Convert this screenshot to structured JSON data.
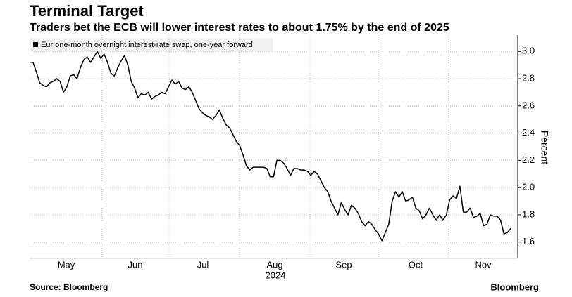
{
  "chart_data": {
    "type": "line",
    "title": "Terminal Target",
    "subtitle": "Traders bet the ECB will lower interest rates to about 1.75% by the end of 2025",
    "y_label": "Percent",
    "xtick_labels": [
      "May",
      "Jun",
      "Jul",
      "Aug",
      "Sep",
      "Oct",
      "Nov"
    ],
    "x_year_label": "2024",
    "source": "Source: Bloomberg",
    "logo": "Bloomberg",
    "ylim": [
      1.48,
      3.12
    ],
    "yticks": [
      1.6,
      1.8,
      {
        "value": 2.0,
        "label": "2.0"
      },
      2.2,
      2.4,
      2.6,
      2.8,
      {
        "value": 3.0,
        "label": "3.0"
      }
    ],
    "grid": true,
    "series": [
      {
        "name": "Eur one-month overnight interest-rate swap, one-year forward",
        "color": "#000000",
        "values": [
          2.92,
          2.92,
          2.85,
          2.77,
          2.75,
          2.74,
          2.77,
          2.78,
          2.8,
          2.78,
          2.7,
          2.74,
          2.82,
          2.83,
          2.8,
          2.88,
          2.94,
          2.96,
          2.92,
          2.96,
          3.0,
          2.95,
          2.98,
          2.92,
          2.84,
          2.82,
          2.88,
          2.93,
          2.97,
          2.9,
          2.78,
          2.73,
          2.66,
          2.69,
          2.68,
          2.7,
          2.65,
          2.67,
          2.68,
          2.7,
          2.69,
          2.74,
          2.79,
          2.76,
          2.78,
          2.73,
          2.72,
          2.74,
          2.7,
          2.64,
          2.58,
          2.55,
          2.53,
          2.52,
          2.5,
          2.53,
          2.57,
          2.51,
          2.46,
          2.44,
          2.39,
          2.34,
          2.31,
          2.24,
          2.16,
          2.13,
          2.15,
          2.15,
          2.15,
          2.15,
          2.14,
          2.08,
          2.08,
          2.2,
          2.2,
          2.18,
          2.14,
          2.09,
          2.14,
          2.14,
          2.13,
          2.13,
          2.12,
          2.09,
          2.12,
          2.1,
          2.05,
          2.0,
          1.97,
          1.9,
          1.85,
          1.8,
          1.89,
          1.84,
          1.8,
          1.87,
          1.85,
          1.81,
          1.75,
          1.72,
          1.75,
          1.73,
          1.69,
          1.66,
          1.61,
          1.67,
          1.73,
          1.9,
          1.97,
          1.93,
          1.97,
          1.9,
          1.91,
          1.93,
          1.85,
          1.83,
          1.77,
          1.8,
          1.85,
          1.8,
          1.76,
          1.8,
          1.76,
          1.8,
          1.91,
          1.94,
          1.92,
          2.01,
          1.82,
          1.82,
          1.85,
          1.78,
          1.79,
          1.81,
          1.72,
          1.73,
          1.8,
          1.79,
          1.79,
          1.76,
          1.66,
          1.67,
          1.7
        ]
      }
    ]
  }
}
